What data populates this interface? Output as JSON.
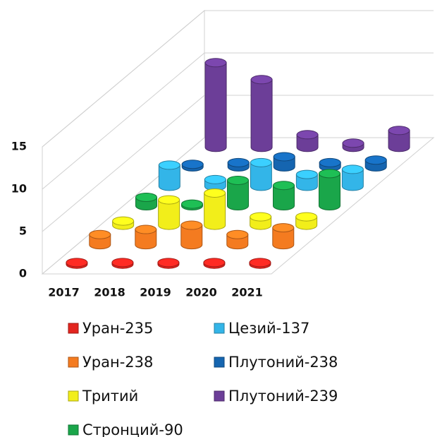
{
  "chart_data": {
    "type": "bar3d",
    "categories": [
      "2017",
      "2018",
      "2019",
      "2020",
      "2021"
    ],
    "series": [
      {
        "name": "Уран-235",
        "color": "#e3251f",
        "values": [
          0.2,
          0.2,
          0.2,
          0.2,
          0.2
        ]
      },
      {
        "name": "Уран-238",
        "color": "#f47b20",
        "values": [
          1.2,
          1.8,
          2.3,
          1.2,
          2
        ]
      },
      {
        "name": "Тритий",
        "color": "#f2ee1a",
        "values": [
          0.5,
          3,
          3.8,
          1,
          1
        ]
      },
      {
        "name": "Стронций-90",
        "color": "#1aa64a",
        "values": [
          1,
          0.2,
          3,
          2.4,
          3.8
        ]
      },
      {
        "name": "Цезий-137",
        "color": "#33b5e8",
        "values": [
          2.5,
          0.8,
          2.8,
          1.4,
          2
        ]
      },
      {
        "name": "Плутоний-238",
        "color": "#1565b0",
        "values": [
          0.3,
          0.5,
          1.2,
          0.5,
          0.8
        ]
      },
      {
        "name": "Плутоний-239",
        "color": "#6c3e98",
        "values": [
          10,
          8,
          1.5,
          0.5,
          2
        ]
      }
    ],
    "ylim": [
      0,
      15
    ],
    "yticks": [
      0,
      5,
      10,
      15
    ],
    "grid": true
  }
}
